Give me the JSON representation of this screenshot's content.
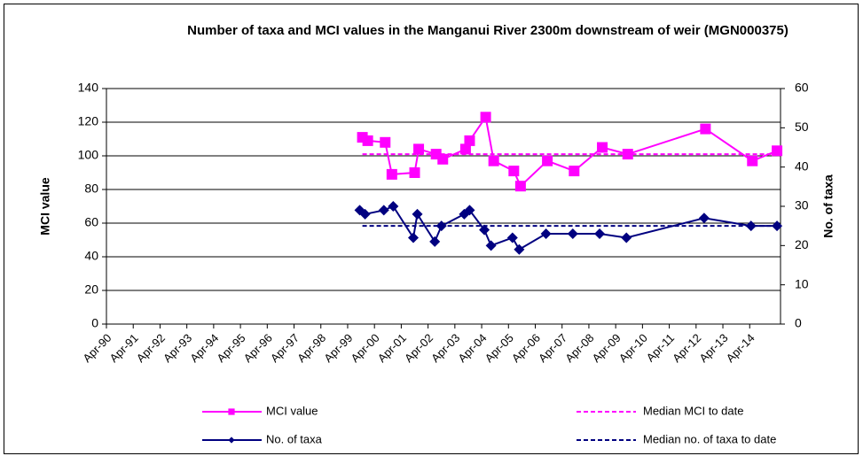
{
  "chart_data": {
    "type": "line",
    "title": "Number of taxa and MCI values in the Manganui River 2300m downstream of weir (MGN000375)",
    "y_label": "MCI value",
    "y2_label": "No. of taxa",
    "xlim": [
      1990.25,
      2015.4
    ],
    "xticks": [
      {
        "value": 1990.25,
        "label": "Apr-90"
      },
      {
        "value": 1991.25,
        "label": "Apr-91"
      },
      {
        "value": 1992.25,
        "label": "Apr-92"
      },
      {
        "value": 1993.25,
        "label": "Apr-93"
      },
      {
        "value": 1994.25,
        "label": "Apr-94"
      },
      {
        "value": 1995.25,
        "label": "Apr-95"
      },
      {
        "value": 1996.25,
        "label": "Apr-96"
      },
      {
        "value": 1997.25,
        "label": "Apr-97"
      },
      {
        "value": 1998.25,
        "label": "Apr-98"
      },
      {
        "value": 1999.25,
        "label": "Apr-99"
      },
      {
        "value": 2000.25,
        "label": "Apr-00"
      },
      {
        "value": 2001.25,
        "label": "Apr-01"
      },
      {
        "value": 2002.25,
        "label": "Apr-02"
      },
      {
        "value": 2003.25,
        "label": "Apr-03"
      },
      {
        "value": 2004.25,
        "label": "Apr-04"
      },
      {
        "value": 2005.25,
        "label": "Apr-05"
      },
      {
        "value": 2006.25,
        "label": "Apr-06"
      },
      {
        "value": 2007.25,
        "label": "Apr-07"
      },
      {
        "value": 2008.25,
        "label": "Apr-08"
      },
      {
        "value": 2009.25,
        "label": "Apr-09"
      },
      {
        "value": 2010.25,
        "label": "Apr-10"
      },
      {
        "value": 2011.25,
        "label": "Apr-11"
      },
      {
        "value": 2012.25,
        "label": "Apr-12"
      },
      {
        "value": 2013.25,
        "label": "Apr-13"
      },
      {
        "value": 2014.25,
        "label": "Apr-14"
      }
    ],
    "ylim": [
      0,
      140
    ],
    "yticks": [
      0,
      20,
      40,
      60,
      80,
      100,
      120,
      140
    ],
    "y2lim": [
      0,
      60
    ],
    "y2ticks": [
      0,
      10,
      20,
      30,
      40,
      50,
      60
    ],
    "grid": true,
    "legend": "bottom",
    "series": [
      {
        "name": "MCI value",
        "color": "#ff00ff",
        "marker": "square",
        "dashed": false,
        "x": [
          1999.8,
          2000.0,
          2000.65,
          2000.9,
          2001.75,
          2001.9,
          2002.55,
          2002.8,
          2003.65,
          2003.8,
          2004.4,
          2004.7,
          2005.45,
          2005.7,
          2006.7,
          2007.7,
          2008.75,
          2009.7,
          2012.6,
          2014.35,
          2015.27
        ],
        "values": [
          111,
          109,
          108,
          89,
          90,
          104,
          101,
          98,
          104,
          109,
          123,
          97,
          91,
          82,
          97,
          91,
          105,
          101,
          116,
          97,
          103
        ]
      },
      {
        "name": "Median MCI to date",
        "color": "#ff00ff",
        "marker": "none",
        "dashed": true,
        "x": [
          1999.8,
          2015.27
        ],
        "values": [
          101,
          101
        ]
      },
      {
        "name": "No. of taxa",
        "color": "#000080",
        "marker": "diamond",
        "dashed": false,
        "axis": "y2",
        "x": [
          1999.7,
          1999.9,
          2000.6,
          2000.95,
          2001.7,
          2001.85,
          2002.5,
          2002.75,
          2003.6,
          2003.8,
          2004.35,
          2004.6,
          2005.4,
          2005.65,
          2006.65,
          2007.65,
          2008.65,
          2009.65,
          2012.55,
          2014.3,
          2015.27
        ],
        "values": [
          29,
          28,
          29,
          30,
          22,
          28,
          21,
          25,
          28,
          29,
          24,
          20,
          22,
          19,
          23,
          23,
          23,
          22,
          27,
          25,
          25
        ]
      },
      {
        "name": "Median no. of taxa to date",
        "color": "#000080",
        "marker": "none",
        "dashed": true,
        "axis": "y2",
        "x": [
          1999.8,
          2015.27
        ],
        "values": [
          25,
          25
        ]
      }
    ]
  }
}
